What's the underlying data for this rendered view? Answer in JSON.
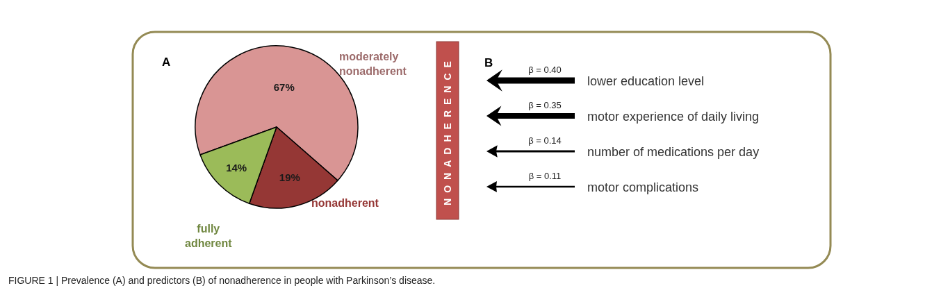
{
  "chart_data": [
    {
      "type": "pie",
      "title": "A",
      "categories": [
        "moderately nonadherent",
        "nonadherent",
        "fully adherent"
      ],
      "values": [
        67,
        19,
        14
      ],
      "value_labels": [
        "67%",
        "19%",
        "14%"
      ],
      "colors": [
        "#d99594",
        "#953735",
        "#9bbb59"
      ],
      "annotations": [
        "FIGURE 1 | Prevalence (A) and predictors (B) of nonadherence in people with Parkinson’s disease."
      ]
    },
    {
      "type": "other",
      "title": "B",
      "categories": [
        "lower education level",
        "motor experience of daily living",
        "number of medications per day",
        "motor complications"
      ],
      "values": [
        0.4,
        0.35,
        0.14,
        0.11
      ],
      "value_labels": [
        "β = 0.40",
        "β = 0.35",
        "β = 0.14",
        "β = 0.11"
      ],
      "annotations": [
        "NONADHERENCE"
      ]
    }
  ]
}
